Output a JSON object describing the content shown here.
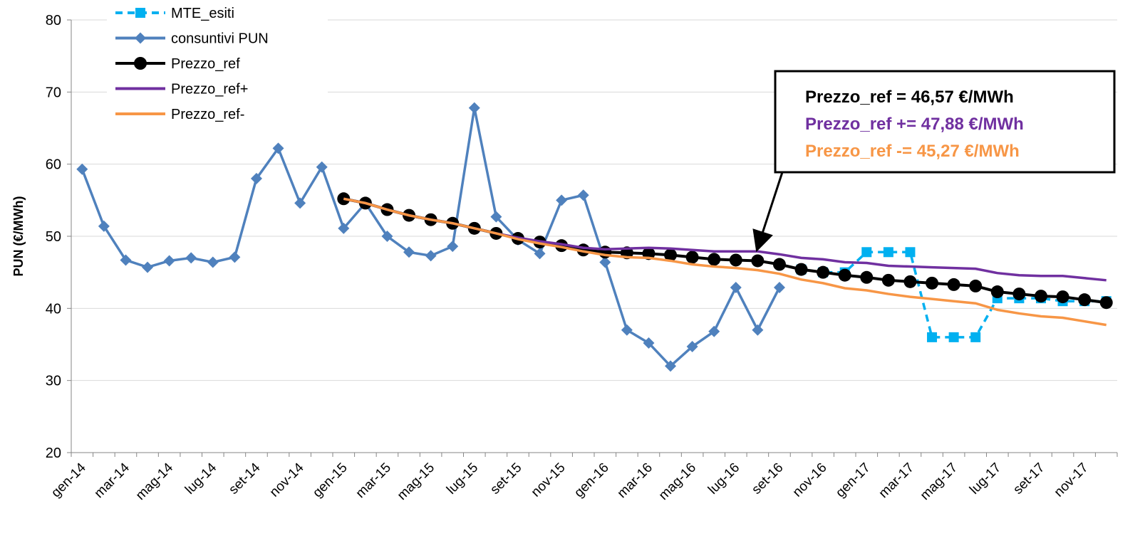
{
  "chart_data": {
    "type": "line",
    "y_label": "PUN (€/MWh)",
    "categories": [
      "gen-14",
      null,
      "mar-14",
      null,
      "mag-14",
      null,
      "lug-14",
      null,
      "set-14",
      null,
      "nov-14",
      null,
      "gen-15",
      null,
      "mar-15",
      null,
      "mag-15",
      null,
      "lug-15",
      null,
      "set-15",
      null,
      "nov-15",
      null,
      "gen-16",
      null,
      "mar-16",
      null,
      "mag-16",
      null,
      "lug-16",
      null,
      "set-16",
      null,
      "nov-16",
      null,
      "gen-17",
      null,
      "mar-17",
      null,
      "mag-17",
      null,
      "lug-17",
      null,
      "set-17",
      null,
      "nov-17",
      null
    ],
    "ylim": [
      20,
      80
    ],
    "yticks": [
      20,
      30,
      40,
      50,
      60,
      70,
      80
    ],
    "grid": true,
    "series": [
      {
        "name": "MTE_esiti",
        "color": "#00b0f0",
        "dash": true,
        "marker": "square",
        "values": [
          null,
          null,
          null,
          null,
          null,
          null,
          null,
          null,
          null,
          null,
          null,
          null,
          null,
          null,
          null,
          null,
          null,
          null,
          null,
          null,
          null,
          null,
          null,
          null,
          null,
          null,
          null,
          null,
          null,
          null,
          null,
          null,
          null,
          45.4,
          45.0,
          45.0,
          47.8,
          47.8,
          47.8,
          36.0,
          36.0,
          36.0,
          41.4,
          41.4,
          41.4,
          41.0,
          41.0,
          41.0
        ]
      },
      {
        "name": "consuntivi PUN",
        "color": "#4f81bd",
        "dash": false,
        "marker": "diamond",
        "values": [
          59.3,
          51.4,
          46.7,
          45.7,
          46.6,
          47.0,
          46.4,
          47.1,
          58.0,
          62.2,
          54.6,
          59.6,
          51.1,
          54.6,
          50.0,
          47.8,
          47.3,
          48.6,
          67.8,
          52.7,
          49.5,
          47.6,
          55.0,
          55.7,
          46.4,
          37.0,
          35.2,
          32.0,
          34.7,
          36.8,
          42.9,
          37.0,
          42.9,
          null,
          null,
          null,
          null,
          null,
          null,
          null,
          null,
          null,
          null,
          null,
          null,
          null,
          null,
          null
        ]
      },
      {
        "name": "Prezzo_ref",
        "color": "#000000",
        "dash": false,
        "marker": "circle",
        "values": [
          null,
          null,
          null,
          null,
          null,
          null,
          null,
          null,
          null,
          null,
          null,
          null,
          55.2,
          54.6,
          53.7,
          52.9,
          52.3,
          51.8,
          51.1,
          50.4,
          49.7,
          49.2,
          48.7,
          48.1,
          47.8,
          47.7,
          47.6,
          47.4,
          47.1,
          46.8,
          46.7,
          46.6,
          46.1,
          45.4,
          45.0,
          44.6,
          44.3,
          43.9,
          43.7,
          43.5,
          43.3,
          43.1,
          42.3,
          42.0,
          41.7,
          41.6,
          41.2,
          40.8
        ]
      },
      {
        "name": "Prezzo_ref+",
        "color": "#7030a0",
        "dash": false,
        "marker": null,
        "values": [
          null,
          null,
          null,
          null,
          null,
          null,
          null,
          null,
          null,
          null,
          null,
          null,
          55.2,
          54.6,
          53.7,
          52.9,
          52.3,
          51.8,
          51.1,
          50.4,
          49.8,
          49.3,
          48.9,
          48.4,
          48.2,
          48.3,
          48.4,
          48.3,
          48.1,
          47.9,
          47.9,
          47.9,
          47.5,
          47.0,
          46.8,
          46.4,
          46.3,
          45.9,
          45.8,
          45.7,
          45.6,
          45.5,
          44.9,
          44.6,
          44.5,
          44.5,
          44.2,
          43.9
        ]
      },
      {
        "name": "Prezzo_ref-",
        "color": "#f79646",
        "dash": false,
        "marker": null,
        "values": [
          null,
          null,
          null,
          null,
          null,
          null,
          null,
          null,
          null,
          null,
          null,
          null,
          55.2,
          54.6,
          53.7,
          52.9,
          52.3,
          51.8,
          51.1,
          50.4,
          49.6,
          49.0,
          48.5,
          47.9,
          47.4,
          47.1,
          47.0,
          46.6,
          46.1,
          45.8,
          45.6,
          45.3,
          44.8,
          44.0,
          43.5,
          42.8,
          42.5,
          42.0,
          41.6,
          41.3,
          41.0,
          40.7,
          39.8,
          39.3,
          38.9,
          38.7,
          38.2,
          37.7
        ]
      }
    ],
    "annotations": [
      {
        "text": "Prezzo_ref = 46,57 €/MWh",
        "color": "#000000"
      },
      {
        "text": "Prezzo_ref += 47,88 €/MWh",
        "color": "#7030a0"
      },
      {
        "text": "Prezzo_ref -= 45,27 €/MWh",
        "color": "#f79646"
      }
    ]
  }
}
